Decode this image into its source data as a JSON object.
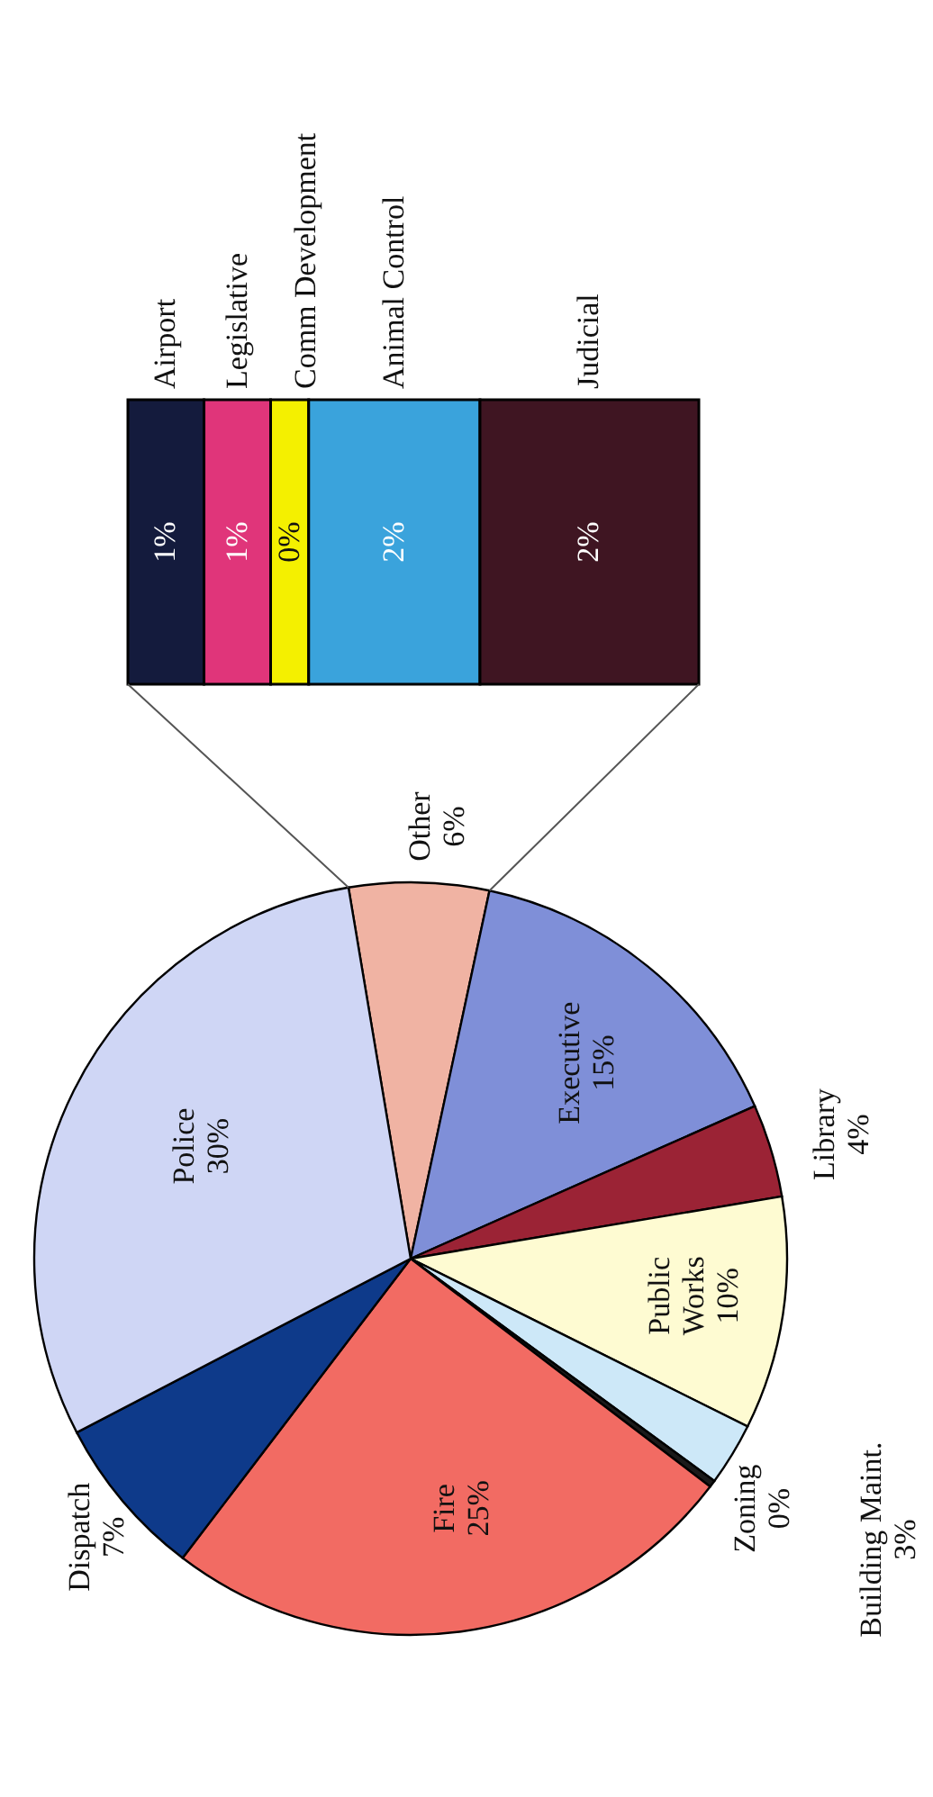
{
  "chart_data": [
    {
      "type": "pie",
      "categories": [
        "Other",
        "Executive",
        "Library",
        "Public Works",
        "Building Maint.",
        "Zoning",
        "Fire",
        "Dispatch",
        "Police"
      ],
      "values": [
        6,
        15,
        4,
        10,
        2.7,
        0.3,
        25,
        7,
        30
      ],
      "colors": [
        "#f0b3a3",
        "#7f8fd8",
        "#9b2335",
        "#fefbd2",
        "#cde8f8",
        "#1a1a1a",
        "#f26b63",
        "#0e3a8a",
        "#cfd6f5"
      ],
      "value_labels": [
        "6%",
        "15%",
        "4%",
        "10%",
        "3%",
        "0%",
        "25%",
        "7%",
        "30%"
      ]
    },
    {
      "type": "bar",
      "orientation": "horizontal",
      "stacked": true,
      "categories": [
        null
      ],
      "series": [
        {
          "name": "Airport",
          "color": "#141b3d",
          "values": [
            0.8
          ],
          "value_labels": [
            "1%"
          ]
        },
        {
          "name": "Legislative",
          "color": "#e0357a",
          "values": [
            0.7
          ],
          "value_labels": [
            "1%"
          ]
        },
        {
          "name": "Comm Development",
          "color": "#f4f000",
          "values": [
            0.4
          ],
          "value_labels": [
            "0%"
          ]
        },
        {
          "name": "Animal Control",
          "color": "#3aa3dc",
          "values": [
            1.8
          ],
          "value_labels": [
            "2%"
          ]
        },
        {
          "name": "Judicial",
          "color": "#3f1522",
          "values": [
            2.3
          ],
          "value_labels": [
            "2%"
          ]
        }
      ]
    }
  ]
}
